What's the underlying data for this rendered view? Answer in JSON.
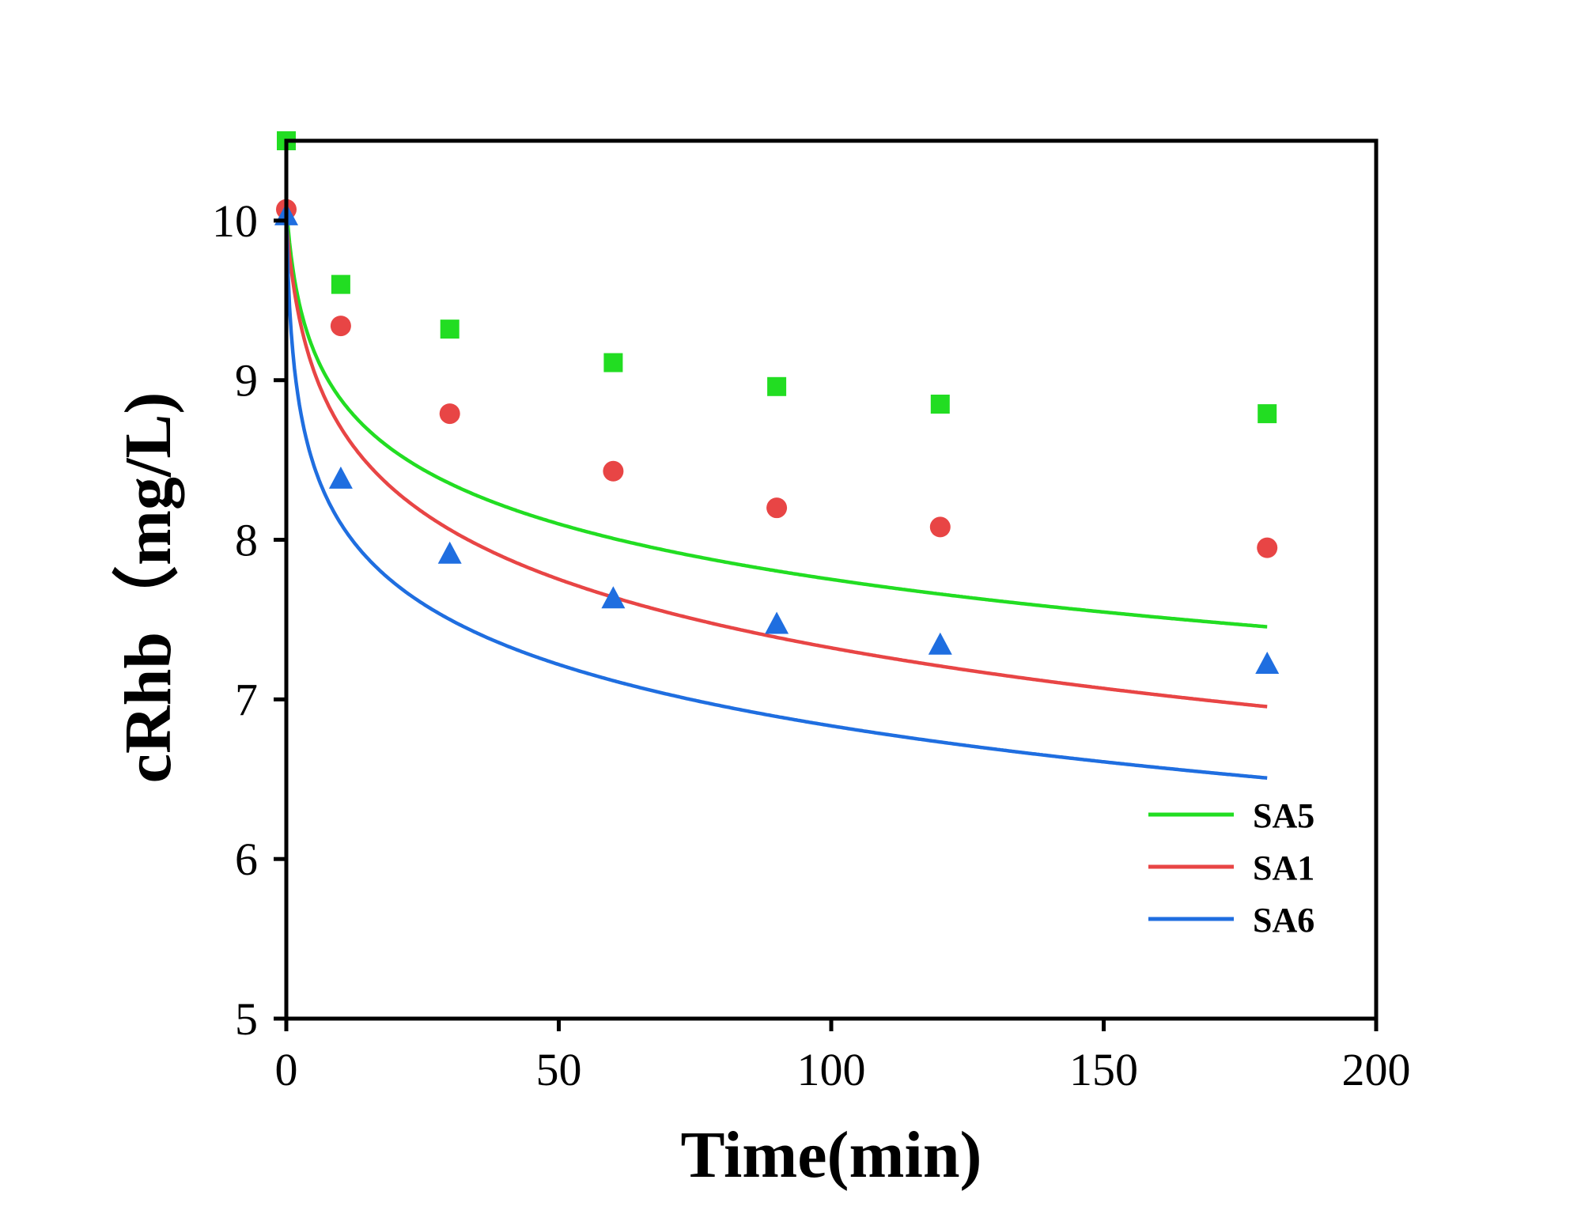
{
  "chart_data": {
    "type": "scatter",
    "title": "",
    "xlabel": "Time(min)",
    "ylabel": "cRhb（mg/L)",
    "xlim": [
      0,
      200
    ],
    "ylim": [
      5,
      10.5
    ],
    "xticks": [
      0,
      50,
      100,
      150,
      200
    ],
    "yticks": [
      5,
      6,
      7,
      8,
      9,
      10
    ],
    "xtick_labels": [
      "0",
      "50",
      "100",
      "150",
      "200"
    ],
    "ytick_labels": [
      "5",
      "6",
      "7",
      "8",
      "9",
      "10"
    ],
    "legend_position": "bottom-right",
    "series": [
      {
        "name": "SA5",
        "color": "#22dd22",
        "marker": "square",
        "x": [
          0,
          10,
          30,
          60,
          90,
          120,
          180
        ],
        "y": [
          10.5,
          9.6,
          9.32,
          9.11,
          8.96,
          8.85,
          8.79
        ],
        "fit": {
          "a": 10.1,
          "b": -0.53,
          "c": 1.0,
          "p": 0.6
        }
      },
      {
        "name": "SA1",
        "color": "#e84545",
        "marker": "circle",
        "x": [
          0,
          10,
          30,
          60,
          90,
          120,
          180
        ],
        "y": [
          10.07,
          9.34,
          8.79,
          8.43,
          8.2,
          8.08,
          7.95
        ],
        "fit": {
          "a": 10.25,
          "b": -0.66,
          "c": 1.5,
          "p": 0.6
        }
      },
      {
        "name": "SA6",
        "color": "#1f6ee0",
        "marker": "triangle",
        "x": [
          0,
          10,
          30,
          60,
          90,
          120,
          180
        ],
        "y": [
          10.03,
          8.38,
          7.91,
          7.63,
          7.47,
          7.34,
          7.22
        ],
        "fit": {
          "a": 9.4,
          "b": -0.58,
          "c": 0.3,
          "p": 0.6
        }
      }
    ]
  }
}
